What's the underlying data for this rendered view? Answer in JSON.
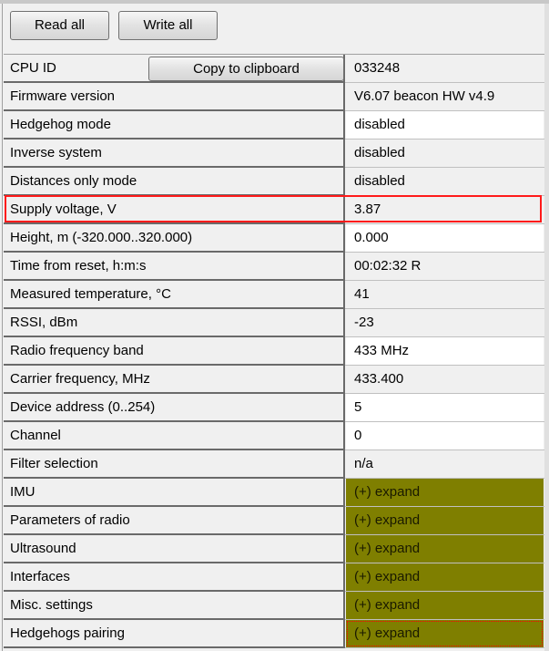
{
  "toolbar": {
    "read_all": "Read all",
    "write_all": "Write all"
  },
  "copy_button": "Copy to clipboard",
  "colors": {
    "expand_bg": "#7f7f00",
    "highlight": "#ff1a1a",
    "editable_bg": "#ffffff"
  },
  "rows": [
    {
      "label": "CPU ID",
      "value": "033248",
      "editable": false
    },
    {
      "label": "Firmware version",
      "value": "V6.07 beacon HW v4.9",
      "editable": false
    },
    {
      "label": "Hedgehog mode",
      "value": "disabled",
      "editable": true
    },
    {
      "label": "Inverse system",
      "value": "disabled",
      "editable": false
    },
    {
      "label": "Distances only mode",
      "value": "disabled",
      "editable": false
    },
    {
      "label": "Supply voltage, V",
      "value": "3.87",
      "editable": false,
      "highlighted": true
    },
    {
      "label": "Height, m (-320.000..320.000)",
      "value": "0.000",
      "editable": true
    },
    {
      "label": "Time from reset, h:m:s",
      "value": "00:02:32   R",
      "editable": false
    },
    {
      "label": "Measured temperature, °C",
      "value": "41",
      "editable": false
    },
    {
      "label": "RSSI, dBm",
      "value": "-23",
      "editable": false
    },
    {
      "label": "Radio frequency band",
      "value": "433 MHz",
      "editable": true
    },
    {
      "label": "Carrier frequency, MHz",
      "value": "433.400",
      "editable": false
    },
    {
      "label": "Device address (0..254)",
      "value": "5",
      "editable": true
    },
    {
      "label": "Channel",
      "value": "0",
      "editable": true
    },
    {
      "label": "Filter selection",
      "value": "n/a",
      "editable": false
    },
    {
      "label": "IMU",
      "value": "(+) expand",
      "expand": true
    },
    {
      "label": "Parameters of radio",
      "value": "(+) expand",
      "expand": true
    },
    {
      "label": "Ultrasound",
      "value": "(+) expand",
      "expand": true
    },
    {
      "label": "Interfaces",
      "value": "(+) expand",
      "expand": true
    },
    {
      "label": "Misc. settings",
      "value": "(+) expand",
      "expand": true
    },
    {
      "label": "Hedgehogs pairing",
      "value": "(+) expand",
      "expand": true,
      "focused": true
    }
  ]
}
